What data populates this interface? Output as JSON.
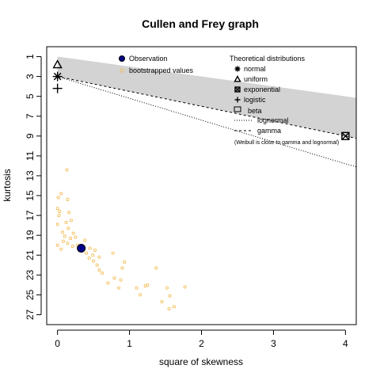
{
  "chart_data": {
    "type": "scatter",
    "title": "Cullen and Frey graph",
    "xlabel": "square of skewness",
    "ylabel": "kurtosis",
    "xlim": [
      -0.15,
      4.15
    ],
    "ylim": [
      28,
      0
    ],
    "y_reversed": true,
    "grid": false,
    "x_ticks": [
      "0",
      "1",
      "2",
      "3",
      "4"
    ],
    "y_ticks": [
      "1",
      "3",
      "5",
      "7",
      "9",
      "11",
      "13",
      "15",
      "17",
      "19",
      "21",
      "23",
      "25",
      "27"
    ],
    "observation": {
      "x": 0.33,
      "y": 20.3
    },
    "bootstrapped": [
      {
        "x": 0.13,
        "y": 12.4
      },
      {
        "x": 0.05,
        "y": 14.8
      },
      {
        "x": 0.01,
        "y": 15.2
      },
      {
        "x": 0.14,
        "y": 15.4
      },
      {
        "x": 0.0,
        "y": 16.3
      },
      {
        "x": 0.16,
        "y": 16.7
      },
      {
        "x": 0.02,
        "y": 17.0
      },
      {
        "x": 0.03,
        "y": 16.6
      },
      {
        "x": 0.19,
        "y": 17.5
      },
      {
        "x": 0.0,
        "y": 17.9
      },
      {
        "x": 0.12,
        "y": 17.7
      },
      {
        "x": 0.15,
        "y": 18.3
      },
      {
        "x": 0.07,
        "y": 18.7
      },
      {
        "x": 0.22,
        "y": 18.8
      },
      {
        "x": 0.1,
        "y": 19.1
      },
      {
        "x": 0.18,
        "y": 19.3
      },
      {
        "x": 0.25,
        "y": 19.2
      },
      {
        "x": 0.08,
        "y": 19.6
      },
      {
        "x": 0.14,
        "y": 19.8
      },
      {
        "x": 0.38,
        "y": 19.5
      },
      {
        "x": 0.0,
        "y": 20.0
      },
      {
        "x": 0.21,
        "y": 20.1
      },
      {
        "x": 0.28,
        "y": 20.0
      },
      {
        "x": 0.05,
        "y": 20.4
      },
      {
        "x": 0.45,
        "y": 20.3
      },
      {
        "x": 0.3,
        "y": 20.5
      },
      {
        "x": 0.52,
        "y": 20.5
      },
      {
        "x": 0.4,
        "y": 20.8
      },
      {
        "x": 0.49,
        "y": 21.0
      },
      {
        "x": 0.77,
        "y": 20.8
      },
      {
        "x": 0.44,
        "y": 21.3
      },
      {
        "x": 0.58,
        "y": 21.2
      },
      {
        "x": 0.5,
        "y": 21.6
      },
      {
        "x": 0.55,
        "y": 22.0
      },
      {
        "x": 0.93,
        "y": 21.7
      },
      {
        "x": 0.9,
        "y": 22.3
      },
      {
        "x": 0.58,
        "y": 22.5
      },
      {
        "x": 0.62,
        "y": 22.8
      },
      {
        "x": 1.37,
        "y": 22.3
      },
      {
        "x": 0.79,
        "y": 23.3
      },
      {
        "x": 0.88,
        "y": 23.5
      },
      {
        "x": 0.7,
        "y": 23.8
      },
      {
        "x": 1.22,
        "y": 24.1
      },
      {
        "x": 1.1,
        "y": 24.3
      },
      {
        "x": 1.52,
        "y": 24.3
      },
      {
        "x": 1.77,
        "y": 24.2
      },
      {
        "x": 1.25,
        "y": 24.0
      },
      {
        "x": 0.85,
        "y": 24.3
      },
      {
        "x": 1.15,
        "y": 25.0
      },
      {
        "x": 1.56,
        "y": 25.1
      },
      {
        "x": 1.45,
        "y": 25.7
      },
      {
        "x": 1.62,
        "y": 26.2
      },
      {
        "x": 1.55,
        "y": 26.4
      }
    ],
    "theoretical_points": {
      "normal": {
        "x": 0,
        "y": 3
      },
      "uniform": {
        "x": 0,
        "y": 1.8
      },
      "exponential": {
        "x": 4,
        "y": 9
      },
      "logistic": {
        "x": 0,
        "y": 4.2
      }
    },
    "beta_region": {
      "upper": [
        [
          0,
          1
        ],
        [
          4.15,
          5.15
        ]
      ],
      "lower": [
        [
          0,
          3
        ],
        [
          4.15,
          9.225
        ]
      ]
    },
    "lognormal_line": [
      [
        0,
        3
      ],
      [
        0.5,
        4.1
      ],
      [
        1,
        5.2
      ],
      [
        1.5,
        6.3
      ],
      [
        2,
        7.4
      ],
      [
        2.5,
        8.5
      ],
      [
        3,
        9.6
      ],
      [
        3.5,
        10.7
      ],
      [
        4,
        11.8
      ],
      [
        4.15,
        12.1
      ]
    ],
    "gamma_line": [
      [
        0,
        3
      ],
      [
        4.15,
        9.225
      ]
    ],
    "legend": {
      "observation_label": "Observation",
      "bootstrap_label": "bootstrapped values",
      "theoretical_title": "Theoretical distributions",
      "entries": [
        "normal",
        "uniform",
        "exponential",
        "logistic",
        "beta",
        "lognormal",
        "gamma"
      ],
      "note": "(Weibull is close to gamma and lognormal)"
    },
    "colors": {
      "observation_fill": "#00008b",
      "bootstrap": "#f2b84b",
      "beta_fill": "#d3d3d3",
      "axis": "#000000"
    }
  }
}
